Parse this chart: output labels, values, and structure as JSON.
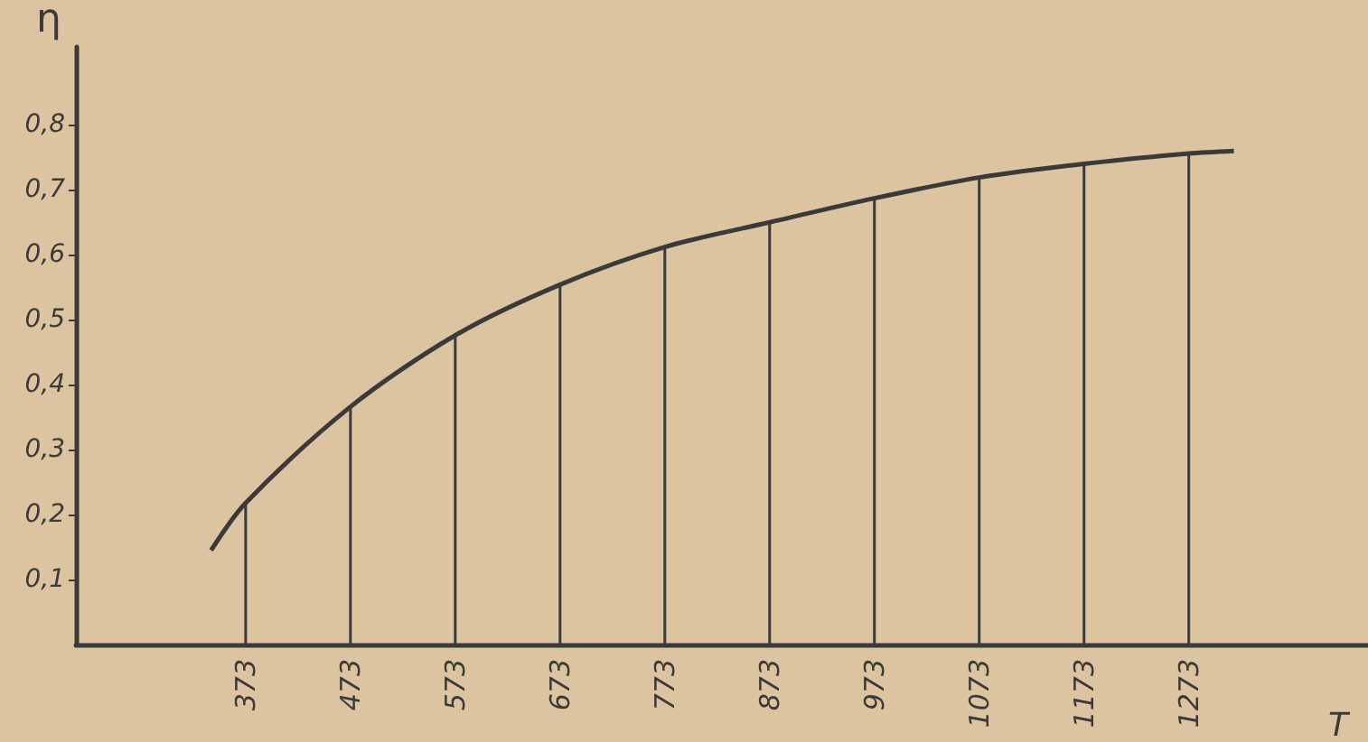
{
  "chart_data": {
    "type": "line",
    "xlabel": "T",
    "ylabel": "η",
    "series": [
      {
        "color": "#3a3a3a",
        "x": [
          340,
          373,
          473,
          573,
          673,
          773,
          873,
          973,
          1073,
          1173,
          1273,
          1316
        ],
        "values": [
          0.145,
          0.218,
          0.366,
          0.476,
          0.554,
          0.612,
          0.65,
          0.687,
          0.719,
          0.74,
          0.756,
          0.76
        ]
      },
      {
        "type": "bar",
        "color": "#3a3a3a",
        "x": [
          373,
          473,
          573,
          673,
          773,
          873,
          973,
          1073,
          1173,
          1273
        ],
        "values": [
          0.218,
          0.366,
          0.476,
          0.554,
          0.612,
          0.65,
          0.687,
          0.719,
          0.74,
          0.756
        ]
      }
    ],
    "xlim": [
      211,
      1444
    ],
    "xticks": [
      373,
      473,
      573,
      673,
      773,
      873,
      973,
      1073,
      1173,
      1273
    ],
    "ylim": [
      0,
      0.92
    ],
    "yticks": [
      {
        "value": 0.1,
        "label": "0,1"
      },
      {
        "value": 0.2,
        "label": "0,2"
      },
      {
        "value": 0.3,
        "label": "0,3"
      },
      {
        "value": 0.4,
        "label": "0,4"
      },
      {
        "value": 0.5,
        "label": "0,5"
      },
      {
        "value": 0.6,
        "label": "0,6"
      },
      {
        "value": 0.7,
        "label": "0,7"
      },
      {
        "value": 0.8,
        "label": "0,8"
      }
    ],
    "grid": false,
    "marker": "none",
    "line_style": "solid"
  }
}
